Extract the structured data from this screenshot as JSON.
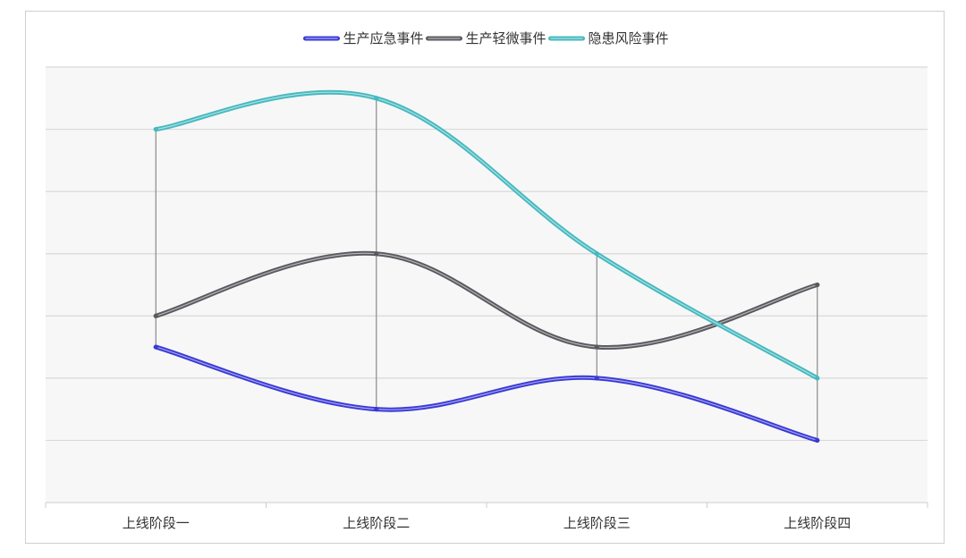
{
  "chart_data": {
    "type": "line",
    "smooth": true,
    "categories": [
      "上线阶段一",
      "上线阶段二",
      "上线阶段三",
      "上线阶段四"
    ],
    "series": [
      {
        "name": "生产应急事件",
        "color": "#3a3ad6",
        "values": [
          2.5,
          1.5,
          2.0,
          1.0
        ]
      },
      {
        "name": "生产轻微事件",
        "color": "#59595f",
        "values": [
          3.0,
          4.0,
          2.5,
          3.5
        ]
      },
      {
        "name": "隐患风险事件",
        "color": "#45b9bf",
        "values": [
          6.0,
          6.5,
          4.0,
          2.0
        ]
      }
    ],
    "ylim": [
      0,
      7
    ],
    "y_gridlines": true,
    "y_tick_labels_shown": false,
    "drop_lines": true,
    "legend_position": "top",
    "plot_background": "#f7f7f7",
    "gridline_color": "#d9d9d9",
    "drop_line_color": "#8a8a8a"
  }
}
